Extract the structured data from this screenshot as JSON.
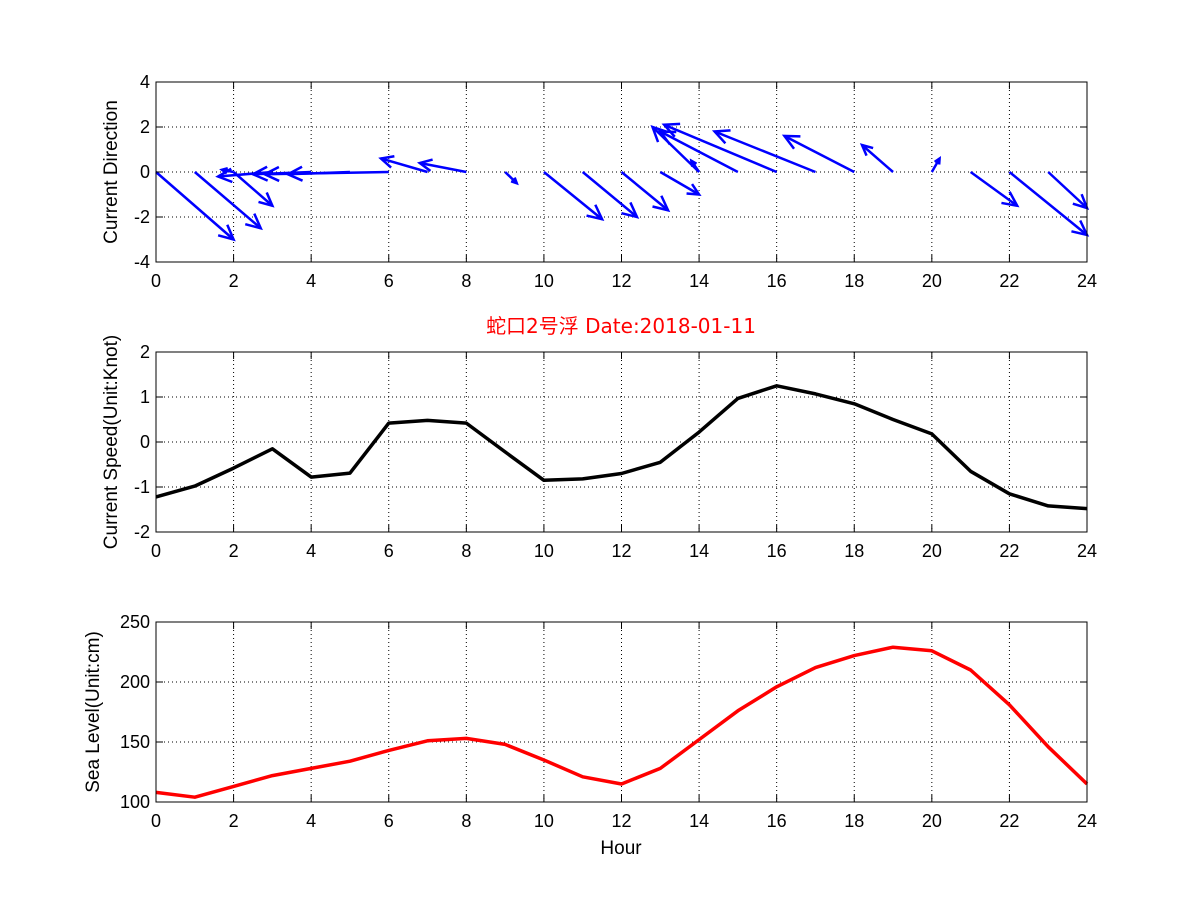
{
  "colors": {
    "quiver": "#0000ff",
    "speed_line": "#000000",
    "sea_line": "#ff0000",
    "title": "#ff0000"
  },
  "chart_data": [
    {
      "type": "quiver",
      "ylabel": "Current Direction",
      "xlim": [
        0,
        24
      ],
      "ylim": [
        -4,
        4
      ],
      "xticks": [
        0,
        2,
        4,
        6,
        8,
        10,
        12,
        14,
        16,
        18,
        20,
        22,
        24
      ],
      "yticks": [
        -4,
        -2,
        0,
        2,
        4
      ],
      "grid": true,
      "arrows": [
        {
          "x": 0,
          "u": 2.0,
          "v": -3.0
        },
        {
          "x": 1,
          "u": 1.7,
          "v": -2.5
        },
        {
          "x": 2,
          "u": -0.3,
          "v": 0.1
        },
        {
          "x": 2,
          "u": 1.0,
          "v": -1.5
        },
        {
          "x": 3,
          "u": -1.4,
          "v": -0.2
        },
        {
          "x": 4,
          "u": -1.5,
          "v": -0.1
        },
        {
          "x": 5,
          "u": -1.6,
          "v": -0.1
        },
        {
          "x": 6,
          "u": -3.2,
          "v": -0.1
        },
        {
          "x": 7,
          "u": -1.2,
          "v": 0.6
        },
        {
          "x": 8,
          "u": -1.2,
          "v": 0.4
        },
        {
          "x": 9,
          "u": 0.3,
          "v": -0.5
        },
        {
          "x": 10,
          "u": 1.5,
          "v": -2.1
        },
        {
          "x": 11,
          "u": 1.4,
          "v": -2.0
        },
        {
          "x": 12,
          "u": 1.2,
          "v": -1.7
        },
        {
          "x": 13,
          "u": 1.0,
          "v": -1.0
        },
        {
          "x": 14,
          "u": -0.2,
          "v": 0.5
        },
        {
          "x": 14,
          "u": -1.2,
          "v": 2.0
        },
        {
          "x": 15,
          "u": -2.0,
          "v": 1.8
        },
        {
          "x": 16,
          "u": -2.9,
          "v": 2.1
        },
        {
          "x": 17,
          "u": -2.6,
          "v": 1.8
        },
        {
          "x": 18,
          "u": -1.8,
          "v": 1.6
        },
        {
          "x": 19,
          "u": -0.8,
          "v": 1.2
        },
        {
          "x": 20,
          "u": 0.2,
          "v": 0.6
        },
        {
          "x": 21,
          "u": 1.2,
          "v": -1.5
        },
        {
          "x": 22,
          "u": 2.0,
          "v": -2.8
        },
        {
          "x": 23,
          "u": 1.0,
          "v": -1.6
        }
      ]
    },
    {
      "type": "line",
      "title": "蛇口2号浮   Date:2018-01-11",
      "ylabel": "Current Speed(Unit:Knot)",
      "xlim": [
        0,
        24
      ],
      "ylim": [
        -2,
        2
      ],
      "xticks": [
        0,
        2,
        4,
        6,
        8,
        10,
        12,
        14,
        16,
        18,
        20,
        22,
        24
      ],
      "yticks": [
        -2,
        -1,
        0,
        1,
        2
      ],
      "grid": true,
      "x": [
        0,
        1,
        2,
        3,
        4,
        5,
        6,
        7,
        8,
        9,
        10,
        11,
        12,
        13,
        14,
        15,
        16,
        17,
        18,
        19,
        20,
        21,
        22,
        23,
        24
      ],
      "y": [
        -1.22,
        -0.98,
        -0.58,
        -0.15,
        -0.78,
        -0.69,
        0.42,
        0.48,
        0.42,
        -0.22,
        -0.85,
        -0.82,
        -0.7,
        -0.45,
        0.22,
        0.97,
        1.25,
        1.07,
        0.85,
        0.5,
        0.18,
        -0.65,
        -1.15,
        -1.42,
        -1.48
      ]
    },
    {
      "type": "line",
      "ylabel": "Sea Level(Unit:cm)",
      "xlabel": "Hour",
      "xlim": [
        0,
        24
      ],
      "ylim": [
        100,
        250
      ],
      "xticks": [
        0,
        2,
        4,
        6,
        8,
        10,
        12,
        14,
        16,
        18,
        20,
        22,
        24
      ],
      "yticks": [
        100,
        150,
        200,
        250
      ],
      "grid": true,
      "x": [
        0,
        1,
        2,
        3,
        4,
        5,
        6,
        7,
        8,
        9,
        10,
        11,
        12,
        13,
        14,
        15,
        16,
        17,
        18,
        19,
        20,
        21,
        22,
        23,
        24
      ],
      "y": [
        108,
        104,
        113,
        122,
        128,
        134,
        143,
        151,
        153,
        148,
        135,
        121,
        115,
        128,
        152,
        176,
        196,
        212,
        222,
        229,
        226,
        210,
        181,
        146,
        115
      ]
    }
  ]
}
